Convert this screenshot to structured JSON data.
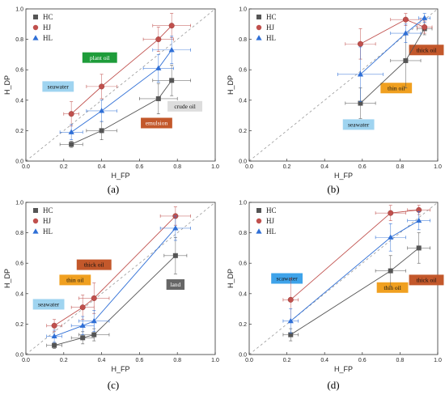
{
  "colors": {
    "HC": "#555555",
    "HJ": "#c0504d",
    "HL": "#2f6fd6",
    "diag": "#999999"
  },
  "chart_data": [
    {
      "id": "a",
      "type": "scatter",
      "panel_label": "(a)",
      "xlabel": "H_FP",
      "ylabel": "H_DP",
      "xlim": [
        0,
        1
      ],
      "ylim": [
        0,
        1
      ],
      "xticks": [
        "0.0",
        "0.2",
        "0.4",
        "0.6",
        "0.8",
        "1.0"
      ],
      "yticks": [
        "0.0",
        "0.2",
        "0.4",
        "0.6",
        "0.8",
        "1.0"
      ],
      "legend": "top-left",
      "diagonal": true,
      "series": [
        {
          "name": "HC",
          "marker": "square",
          "points": [
            {
              "x": 0.24,
              "y": 0.11,
              "xe": 0.06,
              "ye": 0.02
            },
            {
              "x": 0.4,
              "y": 0.2,
              "xe": 0.08,
              "ye": 0.06
            },
            {
              "x": 0.7,
              "y": 0.41,
              "xe": 0.1,
              "ye": 0.1
            },
            {
              "x": 0.77,
              "y": 0.53,
              "xe": 0.1,
              "ye": 0.1
            }
          ]
        },
        {
          "name": "HJ",
          "marker": "circle",
          "points": [
            {
              "x": 0.24,
              "y": 0.31,
              "xe": 0.04,
              "ye": 0.08
            },
            {
              "x": 0.4,
              "y": 0.49,
              "xe": 0.08,
              "ye": 0.08
            },
            {
              "x": 0.7,
              "y": 0.8,
              "xe": 0.08,
              "ye": 0.08
            },
            {
              "x": 0.77,
              "y": 0.89,
              "xe": 0.1,
              "ye": 0.08
            }
          ]
        },
        {
          "name": "HL",
          "marker": "triangle",
          "points": [
            {
              "x": 0.24,
              "y": 0.19,
              "xe": 0.06,
              "ye": 0.05
            },
            {
              "x": 0.4,
              "y": 0.33,
              "xe": 0.08,
              "ye": 0.07
            },
            {
              "x": 0.7,
              "y": 0.61,
              "xe": 0.08,
              "ye": 0.09
            },
            {
              "x": 0.77,
              "y": 0.73,
              "xe": 0.1,
              "ye": 0.09
            }
          ]
        }
      ],
      "annotations": [
        {
          "text": "plant oil",
          "x": 0.39,
          "y": 0.68,
          "bg": "#1e9c3a",
          "fg": "#ffffff"
        },
        {
          "text": "seawater",
          "x": 0.17,
          "y": 0.49,
          "bg": "#9fd4f0",
          "fg": "#111111"
        },
        {
          "text": "crude oil",
          "x": 0.84,
          "y": 0.36,
          "bg": "#dddddd",
          "fg": "#111111"
        },
        {
          "text": "emulsion",
          "x": 0.69,
          "y": 0.25,
          "bg": "#c3582b",
          "fg": "#ffffff"
        }
      ]
    },
    {
      "id": "b",
      "type": "scatter",
      "panel_label": "(b)",
      "xlabel": "H_FP",
      "ylabel": "H_DP",
      "xlim": [
        0,
        1
      ],
      "ylim": [
        0,
        1
      ],
      "xticks": [
        "0.0",
        "0.2",
        "0.4",
        "0.6",
        "0.8",
        "1.0"
      ],
      "yticks": [
        "0.0",
        "0.2",
        "0.4",
        "0.6",
        "0.8",
        "1.0"
      ],
      "legend": "top-left",
      "diagonal": true,
      "series": [
        {
          "name": "HC",
          "marker": "square",
          "points": [
            {
              "x": 0.59,
              "y": 0.38,
              "xe": 0.08,
              "ye": 0.1
            },
            {
              "x": 0.83,
              "y": 0.66,
              "xe": 0.08,
              "ye": 0.18
            },
            {
              "x": 0.93,
              "y": 0.87,
              "xe": 0.04,
              "ye": 0.04
            }
          ]
        },
        {
          "name": "HJ",
          "marker": "circle",
          "points": [
            {
              "x": 0.59,
              "y": 0.77,
              "xe": 0.08,
              "ye": 0.1
            },
            {
              "x": 0.83,
              "y": 0.93,
              "xe": 0.08,
              "ye": 0.04
            },
            {
              "x": 0.93,
              "y": 0.88,
              "xe": 0.04,
              "ye": 0.04
            }
          ]
        },
        {
          "name": "HL",
          "marker": "triangle",
          "points": [
            {
              "x": 0.59,
              "y": 0.57,
              "xe": 0.12,
              "ye": 0.18
            },
            {
              "x": 0.83,
              "y": 0.84,
              "xe": 0.08,
              "ye": 0.06
            },
            {
              "x": 0.93,
              "y": 0.94,
              "xe": 0.03,
              "ye": 0.03
            }
          ]
        }
      ],
      "annotations": [
        {
          "text": "seawater",
          "x": 0.58,
          "y": 0.24,
          "bg": "#9fd4f0",
          "fg": "#111111"
        },
        {
          "text": "thin oil",
          "x": 0.78,
          "y": 0.48,
          "bg": "#f0a020",
          "fg": "#111111"
        },
        {
          "text": "thick oil",
          "x": 0.94,
          "y": 0.73,
          "bg": "#c3582b",
          "fg": "#111111"
        }
      ]
    },
    {
      "id": "c",
      "type": "scatter",
      "panel_label": "(c)",
      "xlabel": "H_FP",
      "ylabel": "H_DP",
      "xlim": [
        0,
        1
      ],
      "ylim": [
        0,
        1
      ],
      "xticks": [
        "0.0",
        "0.2",
        "0.4",
        "0.6",
        "0.8",
        "1.0"
      ],
      "yticks": [
        "0.0",
        "0.2",
        "0.4",
        "0.6",
        "0.8",
        "1.0"
      ],
      "legend": "top-left",
      "diagonal": true,
      "series": [
        {
          "name": "HC",
          "marker": "square",
          "points": [
            {
              "x": 0.15,
              "y": 0.06,
              "xe": 0.04,
              "ye": 0.02
            },
            {
              "x": 0.3,
              "y": 0.11,
              "xe": 0.06,
              "ye": 0.04
            },
            {
              "x": 0.36,
              "y": 0.13,
              "xe": 0.08,
              "ye": 0.04
            },
            {
              "x": 0.79,
              "y": 0.65,
              "xe": 0.06,
              "ye": 0.12
            }
          ]
        },
        {
          "name": "HJ",
          "marker": "circle",
          "points": [
            {
              "x": 0.15,
              "y": 0.19,
              "xe": 0.04,
              "ye": 0.04
            },
            {
              "x": 0.3,
              "y": 0.31,
              "xe": 0.06,
              "ye": 0.08
            },
            {
              "x": 0.36,
              "y": 0.37,
              "xe": 0.08,
              "ye": 0.1
            },
            {
              "x": 0.79,
              "y": 0.91,
              "xe": 0.08,
              "ye": 0.06
            }
          ]
        },
        {
          "name": "HL",
          "marker": "triangle",
          "points": [
            {
              "x": 0.15,
              "y": 0.12,
              "xe": 0.04,
              "ye": 0.04
            },
            {
              "x": 0.3,
              "y": 0.19,
              "xe": 0.06,
              "ye": 0.06
            },
            {
              "x": 0.36,
              "y": 0.22,
              "xe": 0.08,
              "ye": 0.07
            },
            {
              "x": 0.79,
              "y": 0.83,
              "xe": 0.08,
              "ye": 0.08
            }
          ]
        }
      ],
      "annotations": [
        {
          "text": "thick oil",
          "x": 0.36,
          "y": 0.59,
          "bg": "#c3582b",
          "fg": "#111111"
        },
        {
          "text": "thin oil",
          "x": 0.26,
          "y": 0.49,
          "bg": "#f0a020",
          "fg": "#111111"
        },
        {
          "text": "seawater",
          "x": 0.12,
          "y": 0.33,
          "bg": "#9fd4f0",
          "fg": "#111111"
        },
        {
          "text": "land",
          "x": 0.79,
          "y": 0.46,
          "bg": "#666666",
          "fg": "#ffffff"
        }
      ]
    },
    {
      "id": "d",
      "type": "scatter",
      "panel_label": "(d)",
      "xlabel": "H_FP",
      "ylabel": "H_DP",
      "xlim": [
        0,
        1
      ],
      "ylim": [
        0,
        1
      ],
      "xticks": [
        "0.0",
        "0.2",
        "0.4",
        "0.6",
        "0.8",
        "1.0"
      ],
      "yticks": [
        "0.0",
        "0.2",
        "0.4",
        "0.6",
        "0.8",
        "1.0"
      ],
      "legend": "top-left",
      "diagonal": true,
      "series": [
        {
          "name": "HC",
          "marker": "square",
          "points": [
            {
              "x": 0.22,
              "y": 0.13,
              "xe": 0.04,
              "ye": 0.04
            },
            {
              "x": 0.75,
              "y": 0.55,
              "xe": 0.08,
              "ye": 0.1
            },
            {
              "x": 0.9,
              "y": 0.7,
              "xe": 0.06,
              "ye": 0.1
            }
          ]
        },
        {
          "name": "HJ",
          "marker": "circle",
          "points": [
            {
              "x": 0.22,
              "y": 0.36,
              "xe": 0.04,
              "ye": 0.14
            },
            {
              "x": 0.75,
              "y": 0.93,
              "xe": 0.08,
              "ye": 0.05
            },
            {
              "x": 0.9,
              "y": 0.95,
              "xe": 0.06,
              "ye": 0.03
            }
          ]
        },
        {
          "name": "HL",
          "marker": "triangle",
          "points": [
            {
              "x": 0.22,
              "y": 0.22,
              "xe": 0.04,
              "ye": 0.08
            },
            {
              "x": 0.75,
              "y": 0.77,
              "xe": 0.08,
              "ye": 0.09
            },
            {
              "x": 0.9,
              "y": 0.88,
              "xe": 0.06,
              "ye": 0.06
            }
          ]
        }
      ],
      "annotations": [
        {
          "text": "scawater",
          "x": 0.2,
          "y": 0.5,
          "bg": "#3ea3ea",
          "fg": "#111111"
        },
        {
          "text": "thin oil",
          "x": 0.76,
          "y": 0.44,
          "bg": "#f0a020",
          "fg": "#111111"
        },
        {
          "text": "thick oil",
          "x": 0.94,
          "y": 0.49,
          "bg": "#c3582b",
          "fg": "#111111"
        }
      ]
    }
  ]
}
